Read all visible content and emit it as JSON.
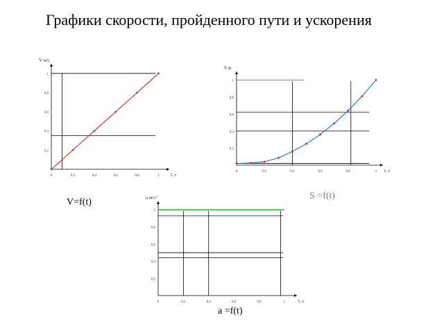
{
  "title": "Графики скорости, пройденного пути и ускорения",
  "charts": [
    {
      "id": "v",
      "caption": "V=f(t)",
      "type": "line",
      "xlabel": "t, c",
      "ylabel": "V м/с",
      "xlim": [
        0,
        1.1
      ],
      "ylim": [
        0,
        1.1
      ],
      "xticks": [
        {
          "v": 0,
          "t": "0"
        },
        {
          "v": 0.2,
          "t": "0,2"
        },
        {
          "v": 0.4,
          "t": "0,4"
        },
        {
          "v": 0.6,
          "t": "0,6"
        },
        {
          "v": 0.8,
          "t": "0,8"
        },
        {
          "v": 1,
          "t": "1"
        }
      ],
      "yticks": [
        {
          "v": 0.2,
          "t": "0,2"
        },
        {
          "v": 0.4,
          "t": "0,4"
        },
        {
          "v": 0.6,
          "t": "0,6"
        },
        {
          "v": 0.8,
          "t": "0,8"
        },
        {
          "v": 1,
          "t": "1"
        }
      ],
      "series": [
        {
          "color": "#e02020",
          "x": [
            0,
            0.2,
            0.4,
            0.6,
            0.8,
            1.0
          ],
          "y": [
            0,
            0.2,
            0.4,
            0.6,
            0.8,
            1.0
          ],
          "marker_color": "#3060c0"
        }
      ],
      "hlines": [
        {
          "y": 1.0,
          "color": "#000000"
        },
        {
          "y": 0.35,
          "color": "#000000"
        }
      ],
      "vlines": [
        {
          "x": 0.1,
          "color": "#000000"
        }
      ]
    },
    {
      "id": "s",
      "caption": "S =f(t)",
      "type": "line",
      "xlabel": "t, c",
      "ylabel": "S м",
      "xlim": [
        0,
        1.05
      ],
      "ylim": [
        0,
        1.1
      ],
      "xticks": [
        {
          "v": 0,
          "t": "0"
        },
        {
          "v": 0.2,
          "t": "0,2"
        },
        {
          "v": 0.4,
          "t": "0,4"
        },
        {
          "v": 0.6,
          "t": "0,6"
        },
        {
          "v": 0.8,
          "t": "0,8"
        },
        {
          "v": 1,
          "t": "1"
        }
      ],
      "yticks": [
        {
          "v": 0.2,
          "t": "0,2"
        },
        {
          "v": 0.4,
          "t": "0,4"
        },
        {
          "v": 0.6,
          "t": "0,6"
        },
        {
          "v": 0.8,
          "t": "0,8"
        },
        {
          "v": 1,
          "t": "1"
        }
      ],
      "series": [
        {
          "color": "#1a6fc0",
          "x": [
            0,
            0.1,
            0.2,
            0.3,
            0.4,
            0.5,
            0.6,
            0.7,
            0.8,
            0.9,
            1.0
          ],
          "y": [
            0.02,
            0.025,
            0.04,
            0.085,
            0.16,
            0.25,
            0.36,
            0.49,
            0.64,
            0.81,
            1.0
          ],
          "marker_color": "#e02020"
        }
      ],
      "hlines": [
        {
          "y": 1.0,
          "color": "#c83030",
          "x_end": 0.48
        },
        {
          "y": 0.62,
          "color": "#000000"
        },
        {
          "y": 0.4,
          "color": "#000000"
        },
        {
          "y": 0.02,
          "color": "#000000"
        }
      ],
      "vlines": [
        {
          "x": 0.4,
          "color": "#000000"
        },
        {
          "x": 0.82,
          "color": "#000000"
        }
      ]
    },
    {
      "id": "a",
      "caption": "a =f(t)",
      "type": "line",
      "xlabel": "t, c",
      "ylabel": "a м/с²",
      "xlim": [
        0,
        1.1
      ],
      "ylim": [
        0,
        1.1
      ],
      "xticks": [
        {
          "v": 0,
          "t": "0"
        },
        {
          "v": 0.2,
          "t": "0,2"
        },
        {
          "v": 0.4,
          "t": "0,4"
        },
        {
          "v": 0.6,
          "t": "0,6"
        },
        {
          "v": 0.8,
          "t": "0,8"
        },
        {
          "v": 1,
          "t": "1"
        }
      ],
      "yticks": [
        {
          "v": 0.2,
          "t": "0,2"
        },
        {
          "v": 0.4,
          "t": "0,4"
        },
        {
          "v": 0.6,
          "t": "0,6"
        },
        {
          "v": 0.8,
          "t": "0,8"
        },
        {
          "v": 1,
          "t": "1"
        }
      ],
      "series": [
        {
          "color": "#2eb82e",
          "x": [
            0,
            1.0
          ],
          "y": [
            1.0,
            1.0
          ]
        }
      ],
      "hlines": [
        {
          "y": 0.93,
          "color": "#000000"
        },
        {
          "y": 0.5,
          "color": "#000000"
        },
        {
          "y": 0.44,
          "color": "#000000"
        }
      ],
      "vlines": [
        {
          "x": 0.2,
          "color": "#000000"
        },
        {
          "x": 0.4,
          "color": "#000000"
        },
        {
          "x": 0.97,
          "color": "#000000"
        }
      ]
    }
  ]
}
